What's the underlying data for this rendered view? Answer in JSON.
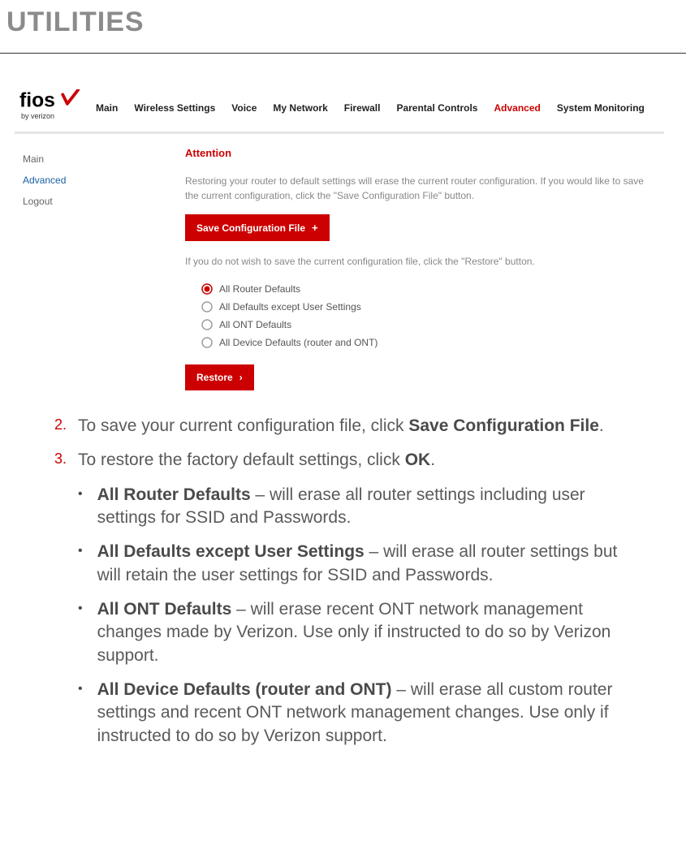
{
  "page_title": "UTILITIES",
  "logo": {
    "by_line": "by verizon"
  },
  "nav": {
    "items": [
      "Main",
      "Wireless Settings",
      "Voice",
      "My Network",
      "Firewall",
      "Parental Controls",
      "Advanced",
      "System Monitoring"
    ],
    "active_index": 6,
    "active_color": "#cc0000",
    "text_color": "#222222"
  },
  "sidebar": {
    "items": [
      "Main",
      "Advanced",
      "Logout"
    ],
    "active_index": 1,
    "active_color": "#1a5fa6"
  },
  "attention": {
    "heading": "Attention",
    "color": "#cc0000",
    "desc1": "Restoring your router to default settings will erase the current router configuration. If you would like to save the current configuration, click the \"Save Configuration File\" button.",
    "save_btn": "Save Configuration File",
    "desc2": "If you do not wish to save the current configuration file, click the \"Restore\" button.",
    "radios": [
      "All Router Defaults",
      "All Defaults except User Settings",
      "All ONT Defaults",
      "All Device Defaults (router and ONT)"
    ],
    "radio_selected_index": 0,
    "radio_selected_color": "#cc0000",
    "radio_unselected_color": "#9e9e9e",
    "restore_btn": "Restore"
  },
  "doc": {
    "step2_num": "2.",
    "step2_a": "To save your current configuration file, click ",
    "step2_b": "Save Configuration File",
    "step2_c": ".",
    "step3_num": "3.",
    "step3_a": "To restore the factory default settings, click ",
    "step3_b": "OK",
    "step3_c": ".",
    "bullets": [
      {
        "bold": "All Router Defaults",
        "rest": " – will erase all router settings including user settings for SSID and Passwords."
      },
      {
        "bold": "All Defaults except User Settings",
        "rest": " – will erase all router settings but will retain the user settings for SSID and Passwords."
      },
      {
        "bold": "All ONT Defaults",
        "rest": " – will erase recent ONT network management changes made by Verizon. Use only if instructed to do so by Verizon support."
      },
      {
        "bold": "All Device Defaults (router and ONT)",
        "rest": " – will erase all custom router settings and recent ONT network management changes. Use only if instructed to do so by Verizon support."
      }
    ]
  },
  "colors": {
    "title_gray": "#8b8b8b",
    "body_gray": "#5a5a5a",
    "accent_red": "#cc0000",
    "muted_gray": "#888888"
  }
}
